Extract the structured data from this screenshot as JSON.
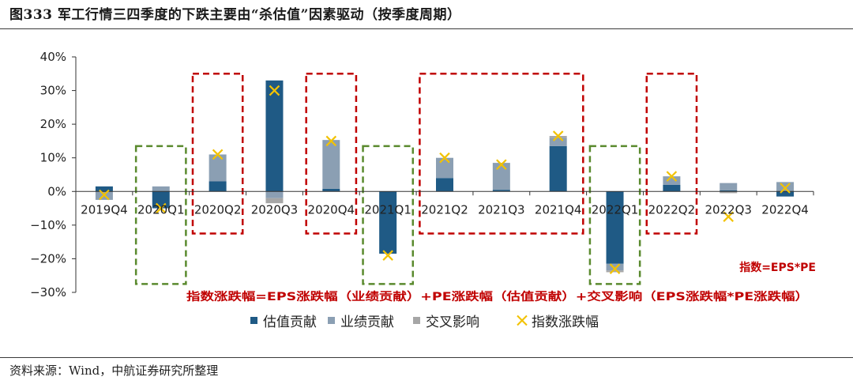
{
  "title": "图333 军工行情三四季度的下跌主要由“杀估值”因素驱动（按季度周期）",
  "source": "资料来源：Wind，中航证券研究所整理",
  "chart_data": {
    "type": "bar",
    "stacked": true,
    "categories": [
      "2019Q4",
      "2020Q1",
      "2020Q2",
      "2020Q3",
      "2020Q4",
      "2021Q1",
      "2021Q2",
      "2021Q3",
      "2021Q4",
      "2022Q1",
      "2022Q2",
      "2022Q3",
      "2022Q4"
    ],
    "ylim": [
      -30,
      40
    ],
    "ytick_labels": [
      "40%",
      "30%",
      "20%",
      "10%",
      "0%",
      "−10%",
      "−20%",
      "−30%"
    ],
    "ytick_values": [
      40,
      30,
      20,
      10,
      0,
      -10,
      -20,
      -30
    ],
    "series": [
      {
        "name": "估值贡献",
        "color": "#1f5a85",
        "values": [
          1.5,
          -5.0,
          3.0,
          33.0,
          0.8,
          -18.5,
          4.0,
          0.5,
          13.5,
          -21.5,
          2.0,
          0.3,
          -1.5
        ]
      },
      {
        "name": "业绩贡献",
        "color": "#8b9fb3",
        "values": [
          -2.5,
          1.5,
          8.0,
          -2.0,
          14.5,
          0.0,
          6.0,
          8.0,
          2.5,
          -2.0,
          2.5,
          2.2,
          2.8
        ]
      },
      {
        "name": "交叉影响",
        "color": "#a6a6a6",
        "values": [
          0.0,
          0.0,
          0.0,
          -1.5,
          0.0,
          0.0,
          0.0,
          0.0,
          0.5,
          -0.5,
          0.0,
          -0.5,
          0.0
        ]
      }
    ],
    "index_change": {
      "name": "指数涨跌幅",
      "color": "#f2c200",
      "values": [
        -1.0,
        -5.0,
        11.0,
        30.0,
        15.0,
        -19.0,
        10.0,
        8.0,
        16.5,
        -23.0,
        4.5,
        -7.5,
        1.0
      ]
    },
    "highlight_groups": [
      {
        "type": "valuation-drop",
        "color": "#5a8a2e",
        "categories": [
          "2020Q1"
        ]
      },
      {
        "type": "valuation-drop",
        "color": "#5a8a2e",
        "categories": [
          "2021Q1"
        ]
      },
      {
        "type": "valuation-drop",
        "color": "#5a8a2e",
        "categories": [
          "2022Q1"
        ]
      },
      {
        "type": "earnings-driven",
        "color": "#c00000",
        "categories": [
          "2020Q2"
        ]
      },
      {
        "type": "earnings-driven",
        "color": "#c00000",
        "categories": [
          "2020Q4"
        ]
      },
      {
        "type": "earnings-driven",
        "color": "#c00000",
        "categories": [
          "2021Q2",
          "2021Q3",
          "2021Q4"
        ]
      },
      {
        "type": "earnings-driven",
        "color": "#c00000",
        "categories": [
          "2022Q2"
        ]
      }
    ],
    "annotations": {
      "formula_top": "指数=EPS*PE",
      "formula_bottom": "指数涨跌幅=EPS涨跌幅（业绩贡献）+PE涨跌幅（估值贡献）+交叉影响（EPS涨跌幅*PE涨跌幅）"
    }
  }
}
